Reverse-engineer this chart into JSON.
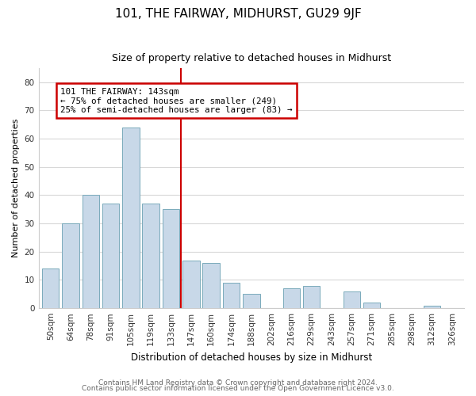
{
  "title": "101, THE FAIRWAY, MIDHURST, GU29 9JF",
  "subtitle": "Size of property relative to detached houses in Midhurst",
  "xlabel": "Distribution of detached houses by size in Midhurst",
  "ylabel": "Number of detached properties",
  "bar_color": "#c8d8e8",
  "bar_edge_color": "#7aaabb",
  "categories": [
    "50sqm",
    "64sqm",
    "78sqm",
    "91sqm",
    "105sqm",
    "119sqm",
    "133sqm",
    "147sqm",
    "160sqm",
    "174sqm",
    "188sqm",
    "202sqm",
    "216sqm",
    "229sqm",
    "243sqm",
    "257sqm",
    "271sqm",
    "285sqm",
    "298sqm",
    "312sqm",
    "326sqm"
  ],
  "values": [
    14,
    30,
    40,
    37,
    64,
    37,
    35,
    17,
    16,
    9,
    5,
    0,
    7,
    8,
    0,
    6,
    2,
    0,
    0,
    1,
    0
  ],
  "vline_index": 7,
  "annotation_title": "101 THE FAIRWAY: 143sqm",
  "annotation_line1": "← 75% of detached houses are smaller (249)",
  "annotation_line2": "25% of semi-detached houses are larger (83) →",
  "annotation_box_color": "#ffffff",
  "annotation_box_edge_color": "#cc0000",
  "vline_color": "#cc0000",
  "ylim": [
    0,
    85
  ],
  "yticks": [
    0,
    10,
    20,
    30,
    40,
    50,
    60,
    70,
    80
  ],
  "footnote1": "Contains HM Land Registry data © Crown copyright and database right 2024.",
  "footnote2": "Contains public sector information licensed under the Open Government Licence v3.0.",
  "background_color": "#ffffff",
  "grid_color": "#d8d8d8",
  "title_fontsize": 11,
  "subtitle_fontsize": 9,
  "ylabel_fontsize": 8,
  "xlabel_fontsize": 8.5,
  "tick_fontsize": 7.5,
  "footnote_fontsize": 6.5
}
